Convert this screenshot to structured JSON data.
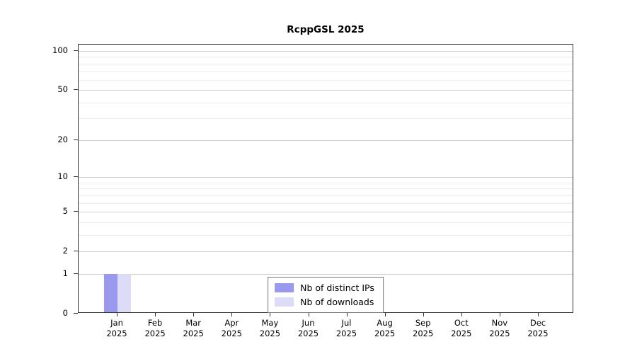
{
  "chart_data": {
    "type": "bar",
    "title": "RcppGSL 2025",
    "categories": [
      {
        "top": "Jan",
        "bottom": "2025"
      },
      {
        "top": "Feb",
        "bottom": "2025"
      },
      {
        "top": "Mar",
        "bottom": "2025"
      },
      {
        "top": "Apr",
        "bottom": "2025"
      },
      {
        "top": "May",
        "bottom": "2025"
      },
      {
        "top": "Jun",
        "bottom": "2025"
      },
      {
        "top": "Jul",
        "bottom": "2025"
      },
      {
        "top": "Aug",
        "bottom": "2025"
      },
      {
        "top": "Sep",
        "bottom": "2025"
      },
      {
        "top": "Oct",
        "bottom": "2025"
      },
      {
        "top": "Nov",
        "bottom": "2025"
      },
      {
        "top": "Dec",
        "bottom": "2025"
      }
    ],
    "series": [
      {
        "name": "Nb of distinct IPs",
        "color": "#9999ee",
        "values": [
          1,
          0,
          0,
          0,
          0,
          0,
          0,
          0,
          0,
          0,
          0,
          0
        ]
      },
      {
        "name": "Nb of downloads",
        "color": "#dcdcf8",
        "values": [
          1,
          0,
          0,
          0,
          0,
          0,
          0,
          0,
          0,
          0,
          0,
          0
        ]
      }
    ],
    "y_scale": "log1p",
    "y_ticks": [
      0,
      1,
      2,
      5,
      10,
      20,
      50,
      100
    ],
    "ylim": [
      0,
      100
    ],
    "gridlines": [
      1,
      2,
      3,
      4,
      5,
      6,
      7,
      8,
      9,
      10,
      20,
      30,
      40,
      50,
      60,
      70,
      80,
      90,
      100
    ],
    "grid": true,
    "legend": {
      "position": "bottom-center",
      "entries": [
        "Nb of distinct IPs",
        "Nb of downloads"
      ]
    }
  }
}
